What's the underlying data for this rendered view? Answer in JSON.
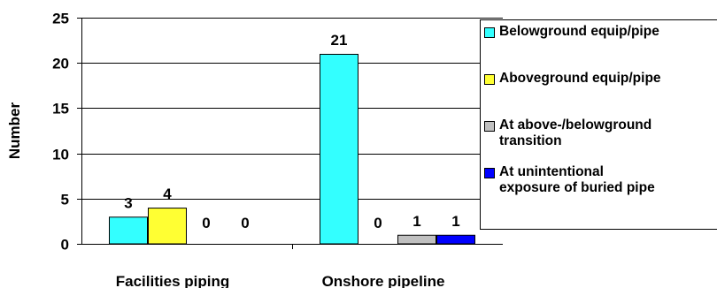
{
  "chart_data": {
    "type": "bar",
    "title": "",
    "xlabel": "",
    "ylabel": "Number",
    "ylim": [
      0,
      25
    ],
    "yticks": [
      0,
      5,
      10,
      15,
      20,
      25
    ],
    "grid": "horizontal",
    "legend_position": "right",
    "categories": [
      "Facilities piping",
      "Onshore pipeline"
    ],
    "series": [
      {
        "name": "Belowground equip/pipe",
        "color": "#33FFFF",
        "values": [
          3,
          21
        ]
      },
      {
        "name": "Aboveground equip/pipe",
        "color": "#FFFF33",
        "values": [
          4,
          0
        ]
      },
      {
        "name": "At above-/belowground\ntransition",
        "color": "#C0C0C0",
        "values": [
          0,
          1
        ]
      },
      {
        "name": "At unintentional\nexposure of buried pipe",
        "color": "#0000FF",
        "values": [
          0,
          1
        ]
      }
    ]
  }
}
